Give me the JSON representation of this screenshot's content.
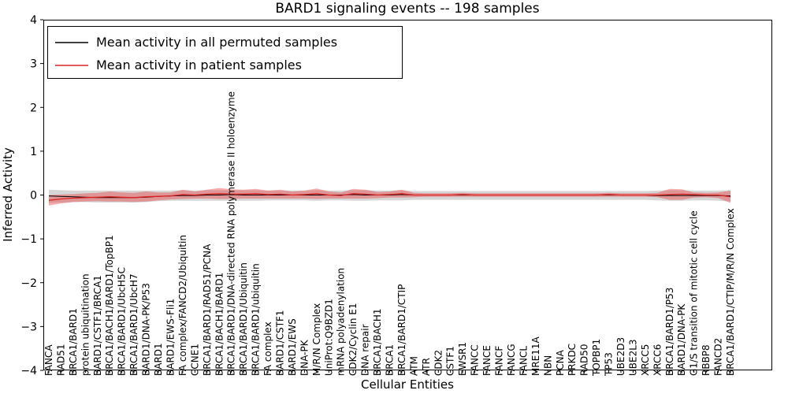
{
  "chart_data": {
    "type": "line",
    "title": "BARD1 signaling events -- 198 samples",
    "xlabel": "Cellular Entities",
    "ylabel": "Inferred Activity",
    "ylim": [
      -4,
      4
    ],
    "yticks": [
      -4,
      -3,
      -2,
      -1,
      0,
      1,
      2,
      3,
      4
    ],
    "grid": false,
    "legend_position": "upper left",
    "categories": [
      "FANCA",
      "RAD51",
      "BRCA1/BARD1",
      "protein ubiquitination",
      "BARD1/CSTF1/BRCA1",
      "BRCA1/BACH1/BARD1/TopBP1",
      "BRCA1/BARD1/UbcH5C",
      "BRCA1/BARD1/UbcH7",
      "BARD1/DNA-PK/P53",
      "BARD1",
      "BARD1/EWS-Fli1",
      "FA complex/FANCD2/Ubiquitin",
      "CCNE1",
      "BRCA1/BARD1/RAD51/PCNA",
      "BRCA1/BACH1/BARD1",
      "BRCA1/BARD1/DNA-directed RNA polymerase II holoenzyme",
      "BRCA1/BARD1/Ubiquitin",
      "BRCA1/BARD1/ubiquitin",
      "FA complex",
      "BARD1/CSTF1",
      "BARD1/EWS",
      "DNA-PK",
      "M/R/N Complex",
      "UniProt:Q9BZD1",
      "mRNA polyadenylation",
      "CDK2/Cyclin E1",
      "DNA repair",
      "BRCA1/BACH1",
      "BRCA1",
      "BRCA1/BARD1/CTIP",
      "ATM",
      "ATR",
      "CDK2",
      "CSTF1",
      "EWSR1",
      "FANCC",
      "FANCE",
      "FANCF",
      "FANCG",
      "FANCL",
      "MRE11A",
      "NBN",
      "PCNA",
      "PRKDC",
      "RAD50",
      "TOPBP1",
      "TP53",
      "UBE2D3",
      "UBE2L3",
      "XRCC5",
      "XRCC6",
      "BRCA1/BARD1/P53",
      "BARD1/DNA-PK",
      "G1/S transition of mitotic cell cycle",
      "RBBP8",
      "FANCD2",
      "BRCA1/BARD1/CTIP/M/R/N Complex"
    ],
    "series": [
      {
        "key": "permuted-mean",
        "name": "Mean activity in all permuted samples",
        "color": "#000000",
        "values": [
          -0.02,
          -0.03,
          -0.04,
          -0.05,
          -0.06,
          -0.06,
          -0.06,
          -0.06,
          -0.05,
          -0.03,
          -0.02,
          -0.01,
          -0.01,
          0,
          0,
          0.01,
          0,
          0,
          0,
          0,
          0,
          0,
          0,
          0,
          0,
          0.01,
          0,
          0,
          0,
          0.01,
          0,
          0,
          0,
          0,
          0,
          0,
          0,
          0,
          0,
          0,
          0,
          0,
          0,
          0,
          0,
          0,
          0,
          0,
          0,
          0,
          -0.01,
          -0.01,
          -0.01,
          -0.01,
          -0.01,
          -0.01,
          -0.02
        ]
      },
      {
        "key": "patient-mean",
        "name": "Mean activity in patient samples",
        "color": "#dd2222",
        "values": [
          -0.12,
          -0.09,
          -0.07,
          -0.06,
          -0.05,
          -0.04,
          -0.05,
          -0.06,
          -0.04,
          -0.03,
          -0.02,
          0.01,
          0.0,
          0.02,
          0.03,
          0.02,
          0.02,
          0.03,
          0.01,
          0.02,
          0.0,
          0.01,
          0.03,
          0.0,
          -0.01,
          0.03,
          0.02,
          0.0,
          0.01,
          0.03,
          0.0,
          0.0,
          0.0,
          0.0,
          0.01,
          0.0,
          0.0,
          0.0,
          0.0,
          0.0,
          0.0,
          0.0,
          0.0,
          0.0,
          0.0,
          0.0,
          0.01,
          0.0,
          0.0,
          0.0,
          0.0,
          0.01,
          0.02,
          0.01,
          0.0,
          0.0,
          -0.04
        ]
      }
    ],
    "bands": [
      {
        "key": "permuted",
        "color": "rgba(128,128,128,0.32)",
        "upper": [
          0.12,
          0.11,
          0.1,
          0.1,
          0.1,
          0.1,
          0.1,
          0.1,
          0.1,
          0.1,
          0.1,
          0.11,
          0.1,
          0.11,
          0.11,
          0.11,
          0.11,
          0.11,
          0.1,
          0.1,
          0.1,
          0.1,
          0.11,
          0.1,
          0.1,
          0.11,
          0.11,
          0.1,
          0.1,
          0.11,
          0.09,
          0.09,
          0.09,
          0.09,
          0.09,
          0.09,
          0.09,
          0.09,
          0.09,
          0.09,
          0.09,
          0.09,
          0.09,
          0.09,
          0.09,
          0.09,
          0.09,
          0.09,
          0.09,
          0.09,
          0.1,
          0.11,
          0.11,
          0.1,
          0.1,
          0.1,
          0.11
        ],
        "lower": [
          -0.18,
          -0.17,
          -0.16,
          -0.16,
          -0.17,
          -0.17,
          -0.17,
          -0.17,
          -0.16,
          -0.14,
          -0.13,
          -0.13,
          -0.13,
          -0.13,
          -0.13,
          -0.13,
          -0.13,
          -0.13,
          -0.12,
          -0.12,
          -0.12,
          -0.12,
          -0.13,
          -0.12,
          -0.12,
          -0.13,
          -0.13,
          -0.12,
          -0.12,
          -0.12,
          -0.11,
          -0.11,
          -0.11,
          -0.11,
          -0.11,
          -0.11,
          -0.11,
          -0.11,
          -0.11,
          -0.11,
          -0.11,
          -0.11,
          -0.11,
          -0.11,
          -0.11,
          -0.11,
          -0.11,
          -0.11,
          -0.11,
          -0.11,
          -0.12,
          -0.13,
          -0.13,
          -0.12,
          -0.12,
          -0.13,
          -0.15
        ]
      },
      {
        "key": "patient",
        "color": "rgba(235,70,70,0.45)",
        "upper": [
          0.0,
          0.01,
          0.02,
          0.04,
          0.05,
          0.08,
          0.06,
          0.05,
          0.08,
          0.06,
          0.06,
          0.12,
          0.08,
          0.12,
          0.16,
          0.13,
          0.12,
          0.14,
          0.1,
          0.12,
          0.08,
          0.1,
          0.15,
          0.08,
          0.06,
          0.14,
          0.12,
          0.07,
          0.08,
          0.12,
          0.05,
          0.04,
          0.04,
          0.04,
          0.05,
          0.04,
          0.04,
          0.04,
          0.04,
          0.04,
          0.04,
          0.04,
          0.04,
          0.04,
          0.04,
          0.04,
          0.05,
          0.04,
          0.04,
          0.04,
          0.05,
          0.14,
          0.13,
          0.06,
          0.05,
          0.06,
          0.1
        ],
        "lower": [
          -0.24,
          -0.19,
          -0.16,
          -0.15,
          -0.14,
          -0.15,
          -0.15,
          -0.16,
          -0.15,
          -0.12,
          -0.1,
          -0.09,
          -0.08,
          -0.08,
          -0.09,
          -0.09,
          -0.08,
          -0.08,
          -0.08,
          -0.08,
          -0.08,
          -0.08,
          -0.09,
          -0.08,
          -0.08,
          -0.08,
          -0.08,
          -0.07,
          -0.06,
          -0.06,
          -0.05,
          -0.04,
          -0.04,
          -0.04,
          -0.04,
          -0.04,
          -0.04,
          -0.04,
          -0.04,
          -0.04,
          -0.04,
          -0.04,
          -0.04,
          -0.04,
          -0.04,
          -0.04,
          -0.04,
          -0.04,
          -0.04,
          -0.04,
          -0.05,
          -0.11,
          -0.11,
          -0.06,
          -0.05,
          -0.07,
          -0.18
        ]
      }
    ]
  }
}
